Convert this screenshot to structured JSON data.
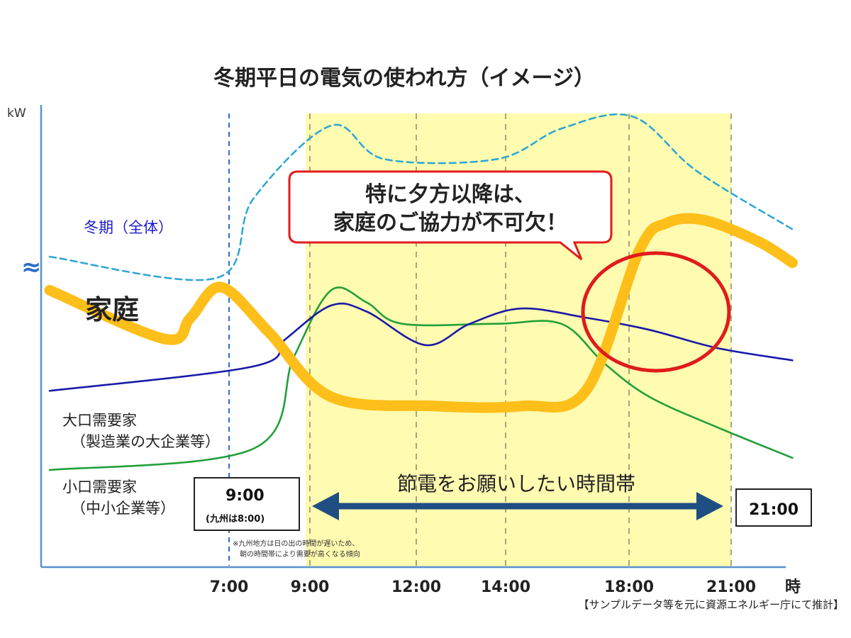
{
  "chart_data": {
    "type": "line",
    "title": "冬期平日の電気の使われ方（イメージ）",
    "ylabel": "kW",
    "xlabel": "時",
    "x_ticks": [
      "7:00",
      "9:00",
      "12:00",
      "14:00",
      "18:00",
      "21:00"
    ],
    "axis_break_symbol": "≈",
    "highlight_band": {
      "from": "9:00",
      "to": "21:00",
      "label": "節電をお願いしたい時間帯",
      "color": "#fffbb0"
    },
    "series": [
      {
        "name": "冬期（全体）",
        "color": "#2aa6d6",
        "style": "dashed",
        "points": [
          [
            0,
            0.53
          ],
          [
            6.5,
            0.46
          ],
          [
            7.6,
            0.72
          ],
          [
            9.6,
            0.96
          ],
          [
            11.1,
            0.85
          ],
          [
            13.8,
            0.85
          ],
          [
            15.8,
            0.95
          ],
          [
            18.1,
            0.99
          ],
          [
            20.0,
            0.81
          ],
          [
            22.8,
            0.62
          ]
        ]
      },
      {
        "name": "家庭",
        "color": "#ffbf1a",
        "style": "thick",
        "points": [
          [
            0,
            0.42
          ],
          [
            4.5,
            0.26
          ],
          [
            5.5,
            0.33
          ],
          [
            6.7,
            0.43
          ],
          [
            8.0,
            0.28
          ],
          [
            9.6,
            0.07
          ],
          [
            12.4,
            0.04
          ],
          [
            14.5,
            0.04
          ],
          [
            16.6,
            0.09
          ],
          [
            18.3,
            0.55
          ],
          [
            19.1,
            0.64
          ],
          [
            20.2,
            0.65
          ],
          [
            21.8,
            0.58
          ],
          [
            22.8,
            0.51
          ]
        ]
      },
      {
        "name": "大口需要家（製造業の大企業等）",
        "color": "#1a1aa8",
        "style": "solid",
        "points": [
          [
            0,
            0.09
          ],
          [
            7.6,
            0.17
          ],
          [
            8.4,
            0.26
          ],
          [
            9.6,
            0.37
          ],
          [
            10.6,
            0.35
          ],
          [
            12.2,
            0.24
          ],
          [
            13.2,
            0.31
          ],
          [
            14.5,
            0.36
          ],
          [
            16.6,
            0.33
          ],
          [
            18.6,
            0.29
          ],
          [
            20.6,
            0.23
          ],
          [
            22.8,
            0.19
          ]
        ]
      },
      {
        "name": "小口需要家（中小企業等）",
        "color": "#22a03a",
        "style": "solid",
        "points": [
          [
            0,
            -0.17
          ],
          [
            7.6,
            -0.1
          ],
          [
            8.6,
            0.2
          ],
          [
            9.6,
            0.42
          ],
          [
            10.6,
            0.38
          ],
          [
            11.6,
            0.31
          ],
          [
            13.8,
            0.31
          ],
          [
            15.8,
            0.31
          ],
          [
            17.2,
            0.18
          ],
          [
            18.6,
            0.07
          ],
          [
            20.6,
            -0.03
          ],
          [
            22.8,
            -0.13
          ]
        ]
      }
    ],
    "callout": {
      "line1": "特に夕方以降は、",
      "line2": "家庭のご協力が不可欠！"
    },
    "start_box": {
      "time": "9:00",
      "note": "(九州は8:00)"
    },
    "end_box": {
      "time": "21:00"
    },
    "small_note": {
      "line1": "※九州地方は日の出の時間が遅いため、",
      "line2": "朝の時間帯により需要が高くなる傾向"
    },
    "source": "【サンプルデータ等を元に資源エネルギー庁にて推計】"
  }
}
